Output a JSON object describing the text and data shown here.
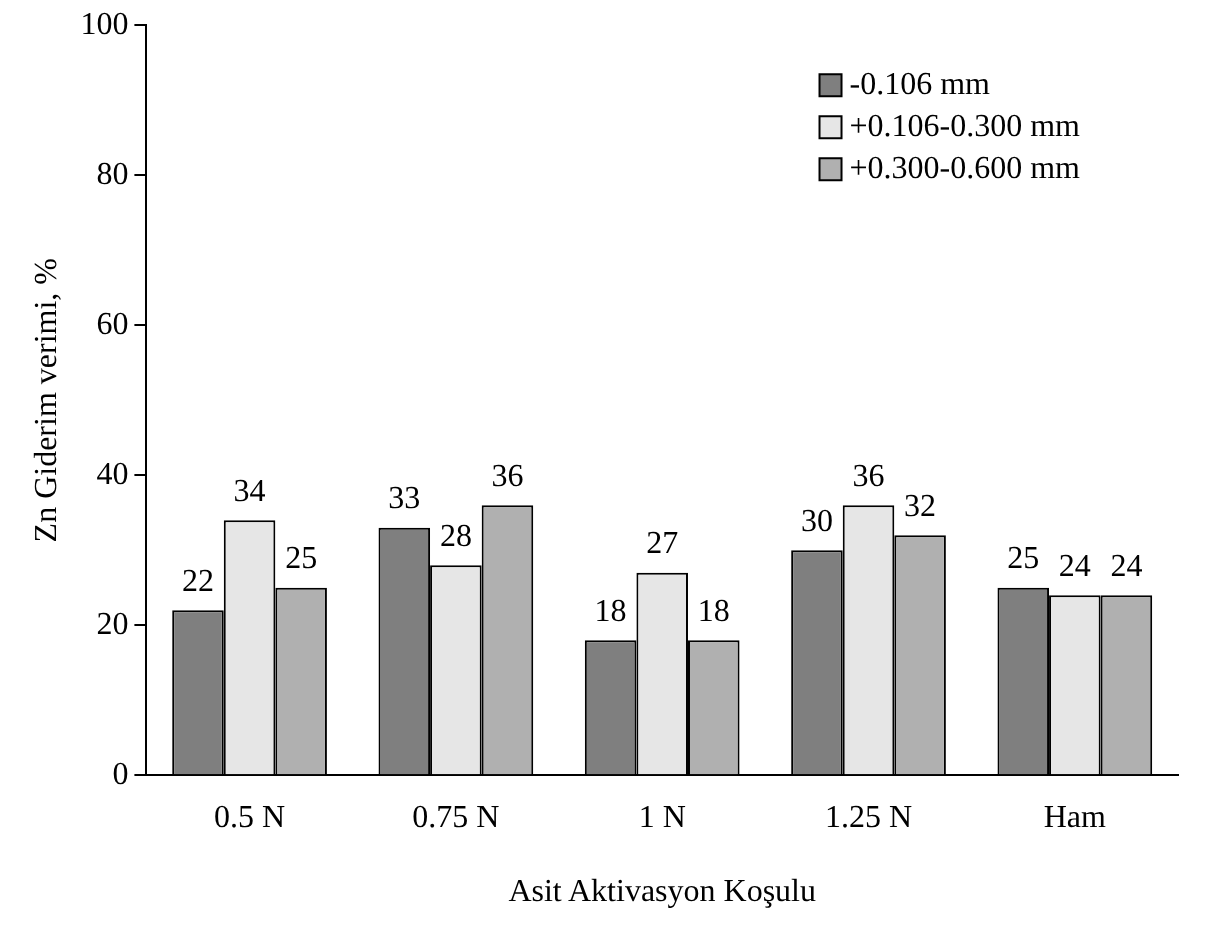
{
  "chart_data": {
    "type": "bar",
    "xlabel": "Asit Aktivasyon Koşulu",
    "ylabel": "Zn Giderim verimi, %",
    "categories": [
      "0.5 N",
      "0.75 N",
      "1 N",
      "1.25 N",
      "Ham"
    ],
    "series": [
      {
        "name": "-0.106 mm",
        "color": "#7f7f7f",
        "values": [
          22,
          33,
          18,
          30,
          25
        ]
      },
      {
        "name": "+0.106-0.300 mm",
        "color": "#e6e6e6",
        "values": [
          34,
          28,
          27,
          36,
          24
        ]
      },
      {
        "name": "+0.300-0.600 mm",
        "color": "#b0b0b0",
        "values": [
          25,
          36,
          18,
          32,
          24
        ]
      }
    ],
    "ylim": [
      0,
      100
    ],
    "yticks": [
      0,
      20,
      40,
      60,
      80,
      100
    ],
    "grid": false,
    "legend": "top right",
    "data_labels": true
  }
}
